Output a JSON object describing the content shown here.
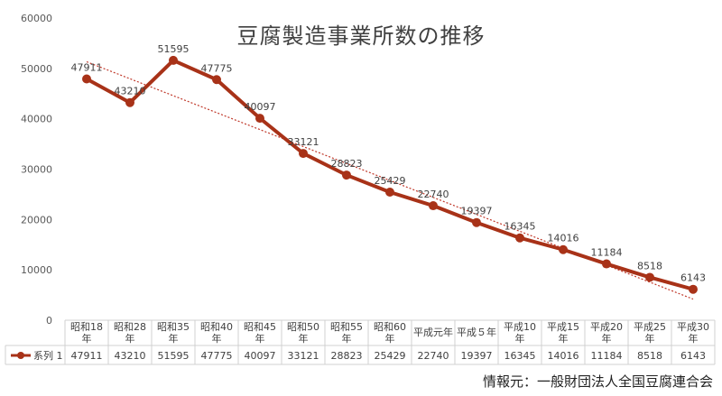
{
  "chart_data": {
    "type": "line",
    "title": "豆腐製造事業所数の推移",
    "categories": [
      [
        "昭和18",
        "年"
      ],
      [
        "昭和28",
        "年"
      ],
      [
        "昭和35",
        "年"
      ],
      [
        "昭和40",
        "年"
      ],
      [
        "昭和45",
        "年"
      ],
      [
        "昭和50",
        "年"
      ],
      [
        "昭和55",
        "年"
      ],
      [
        "昭和60",
        "年"
      ],
      [
        "平成元年"
      ],
      [
        "平成５年"
      ],
      [
        "平成10",
        "年"
      ],
      [
        "平成15",
        "年"
      ],
      [
        "平成20",
        "年"
      ],
      [
        "平成25",
        "年"
      ],
      [
        "平成30",
        "年"
      ]
    ],
    "series": [
      {
        "name": "系列 1",
        "values": [
          47911,
          43210,
          51595,
          47775,
          40097,
          33121,
          28823,
          25429,
          22740,
          19397,
          16345,
          14016,
          11184,
          8518,
          6143
        ]
      }
    ],
    "ylim": [
      0,
      60000
    ],
    "yticks": [
      0,
      10000,
      20000,
      30000,
      40000,
      50000,
      60000
    ],
    "trendline": true,
    "data_table": true,
    "legend_position": "data-table",
    "grid": false,
    "colors": {
      "series": "#a83218",
      "trend": "#c0392b"
    }
  },
  "source_note": "情報元：一般財団法人全国豆腐連合会"
}
